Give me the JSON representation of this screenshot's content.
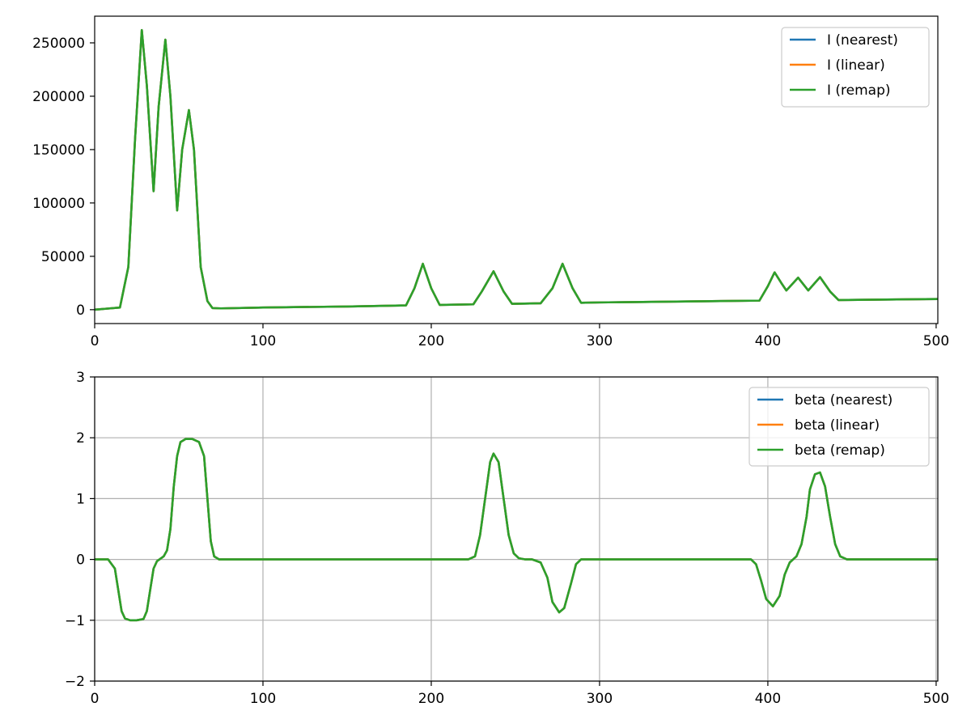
{
  "chart_data": [
    {
      "type": "line",
      "title": "",
      "xlabel": "",
      "ylabel": "",
      "xlim": [
        0,
        501
      ],
      "ylim": [
        -13000,
        275000
      ],
      "grid": false,
      "legend_position": "upper right",
      "xticks": [
        0,
        100,
        200,
        300,
        400,
        500
      ],
      "xtick_labels": [
        "0",
        "100",
        "200",
        "300",
        "400",
        "500"
      ],
      "yticks": [
        0,
        50000,
        100000,
        150000,
        200000,
        250000
      ],
      "ytick_labels": [
        "0",
        "50000",
        "100000",
        "150000",
        "200000",
        "250000"
      ],
      "series": [
        {
          "name": "I (nearest)",
          "color": "#1f77b4"
        },
        {
          "name": "I (linear)",
          "color": "#ff7f0e"
        },
        {
          "name": "I (remap)",
          "color": "#2ca02c"
        }
      ],
      "x": [
        0,
        15,
        20,
        24,
        28,
        31,
        35,
        38,
        42,
        45,
        49,
        52,
        56,
        59,
        63,
        67,
        70,
        75,
        100,
        150,
        185,
        190,
        195,
        200,
        205,
        225,
        230,
        237,
        243,
        248,
        265,
        272,
        278,
        284,
        289,
        300,
        395,
        400,
        404,
        408,
        411,
        418,
        424,
        431,
        437,
        442,
        501
      ],
      "y": [
        0,
        2000,
        40000,
        160000,
        262000,
        210000,
        111000,
        190000,
        253000,
        200000,
        93000,
        150000,
        187000,
        150000,
        40000,
        8000,
        1500,
        1200,
        2000,
        3000,
        4000,
        20000,
        43000,
        20000,
        4500,
        5000,
        17000,
        36000,
        17000,
        5500,
        6000,
        20000,
        43000,
        20000,
        6500,
        6800,
        8500,
        22000,
        35000,
        25000,
        18000,
        30000,
        18000,
        30500,
        17000,
        9000,
        10000
      ]
    },
    {
      "type": "line",
      "title": "",
      "xlabel": "",
      "ylabel": "",
      "xlim": [
        0,
        501
      ],
      "ylim": [
        -2,
        3
      ],
      "grid": true,
      "legend_position": "upper right",
      "xticks": [
        0,
        100,
        200,
        300,
        400,
        500
      ],
      "xtick_labels": [
        "0",
        "100",
        "200",
        "300",
        "400",
        "500"
      ],
      "yticks": [
        -2,
        -1,
        0,
        1,
        2,
        3
      ],
      "ytick_labels": [
        "−2",
        "−1",
        "0",
        "1",
        "2",
        "3"
      ],
      "series": [
        {
          "name": "beta (nearest)",
          "color": "#1f77b4"
        },
        {
          "name": "beta (linear)",
          "color": "#ff7f0e"
        },
        {
          "name": "beta (remap)",
          "color": "#2ca02c"
        }
      ],
      "x": [
        0,
        8,
        12,
        14,
        16,
        18,
        21,
        25,
        29,
        31,
        33,
        35,
        37,
        41,
        43,
        45,
        47,
        49,
        51,
        54,
        58,
        62,
        65,
        67,
        69,
        71,
        74,
        222,
        226,
        229,
        232,
        235,
        237,
        240,
        243,
        246,
        249,
        252,
        256,
        260,
        265,
        269,
        272,
        276,
        279,
        283,
        286,
        289,
        292,
        300,
        390,
        393,
        396,
        399,
        403,
        407,
        410,
        413,
        417,
        420,
        423,
        425,
        428,
        431,
        434,
        437,
        440,
        443,
        447,
        501
      ],
      "y": [
        0,
        0,
        -0.15,
        -0.5,
        -0.85,
        -0.97,
        -1.0,
        -1.0,
        -0.98,
        -0.85,
        -0.5,
        -0.15,
        -0.03,
        0.05,
        0.15,
        0.5,
        1.2,
        1.7,
        1.93,
        1.98,
        1.98,
        1.93,
        1.7,
        1.0,
        0.3,
        0.05,
        0,
        0,
        0.05,
        0.4,
        1.0,
        1.6,
        1.74,
        1.6,
        1.0,
        0.4,
        0.1,
        0.02,
        0,
        0,
        -0.05,
        -0.3,
        -0.7,
        -0.87,
        -0.8,
        -0.4,
        -0.08,
        0,
        0,
        0,
        0,
        -0.08,
        -0.35,
        -0.65,
        -0.77,
        -0.6,
        -0.25,
        -0.05,
        0.05,
        0.25,
        0.7,
        1.15,
        1.4,
        1.43,
        1.2,
        0.7,
        0.25,
        0.05,
        0,
        0
      ]
    }
  ]
}
